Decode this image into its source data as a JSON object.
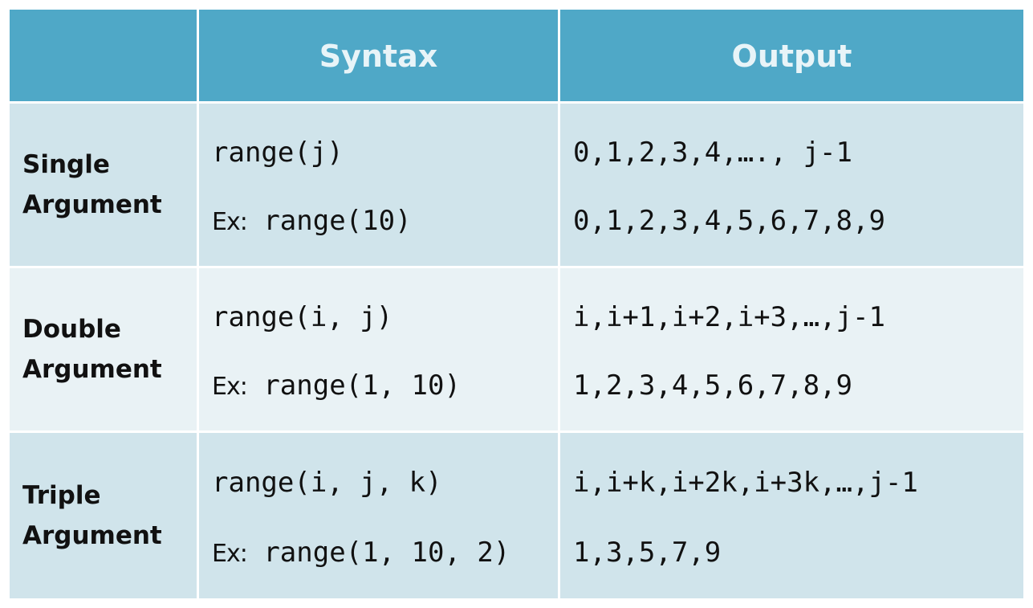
{
  "header": {
    "col1": "",
    "col2": "Syntax",
    "col3": "Output"
  },
  "rows": [
    {
      "label_line1": "Single",
      "label_line2": "Argument",
      "syntax": "range(j)",
      "example_prefix": "Ex:",
      "example_syntax": "range(10)",
      "output": "0,1,2,3,4,…., j-1",
      "example_output": "0,1,2,3,4,5,6,7,8,9"
    },
    {
      "label_line1": "Double",
      "label_line2": "Argument",
      "syntax": "range(i, j)",
      "example_prefix": "Ex:",
      "example_syntax": "range(1, 10)",
      "output": "i,i+1,i+2,i+3,…,j-1",
      "example_output": "1,2,3,4,5,6,7,8,9"
    },
    {
      "label_line1": "Triple",
      "label_line2": "Argument",
      "syntax": "range(i, j, k)",
      "example_prefix": "Ex:",
      "example_syntax": "range(1, 10, 2)",
      "output": "i,i+k,i+2k,i+3k,…,j-1",
      "example_output": "1,3,5,7,9"
    }
  ],
  "colors": {
    "header_bg": "#4fa8c7",
    "header_text": "#e8f4f8",
    "row_dark": "#d0e4eb",
    "row_light": "#e9f2f5"
  }
}
